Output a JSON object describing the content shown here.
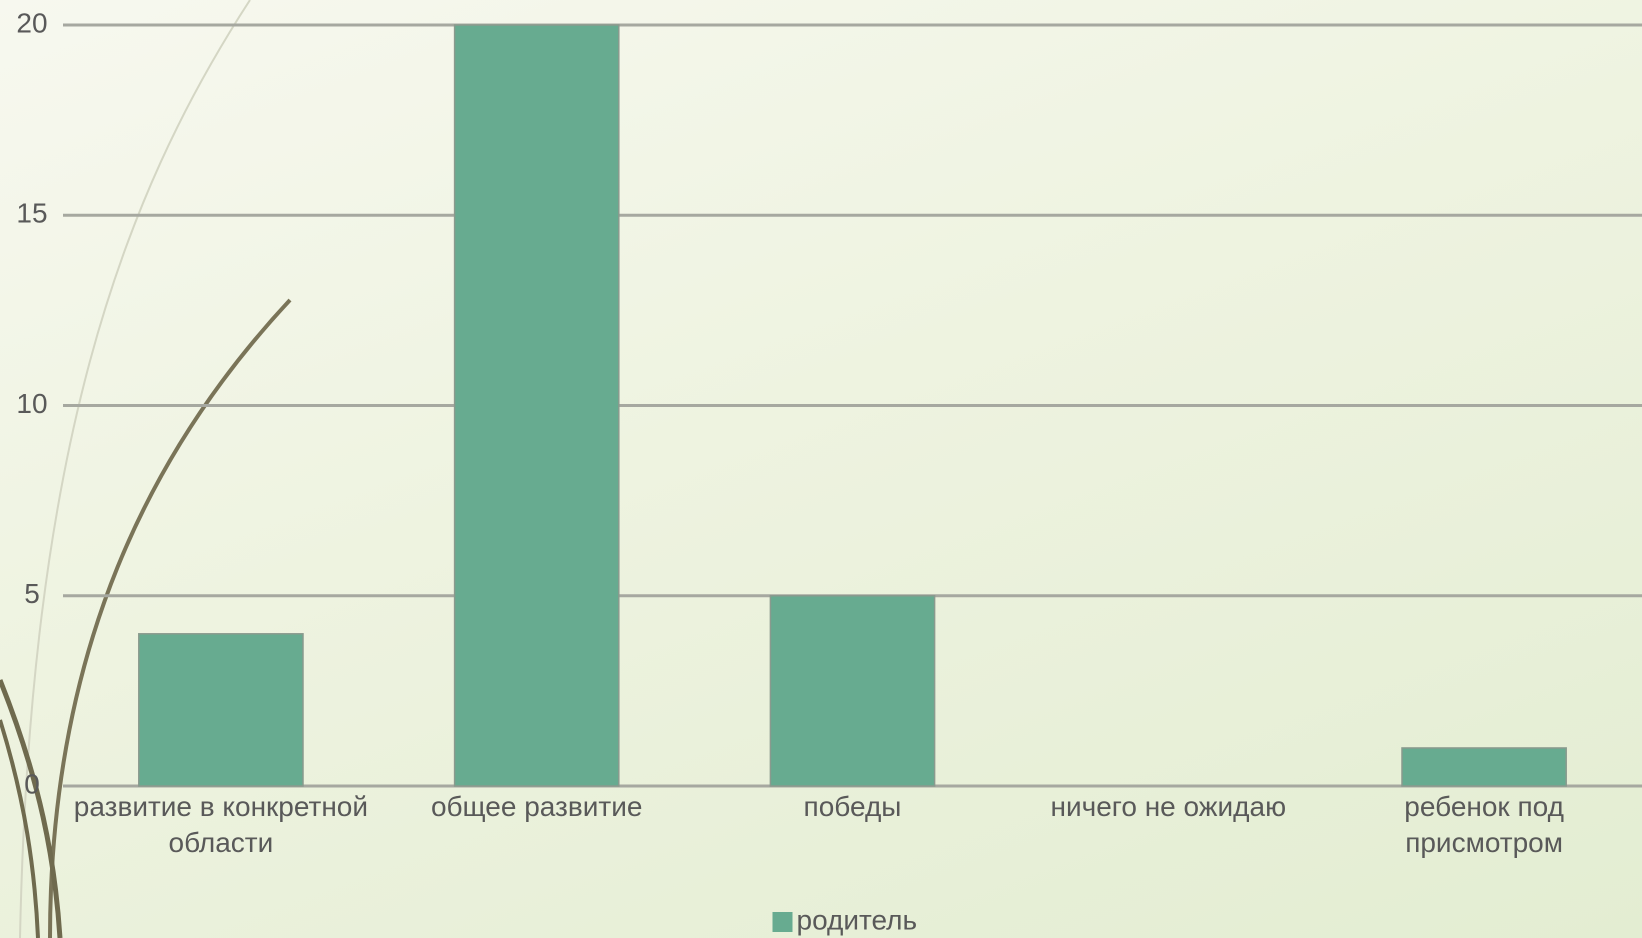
{
  "chart_data": {
    "type": "bar",
    "categories": [
      "развитие в конкретной области",
      "общее развитие",
      "победы",
      "ничего не ожидаю",
      "ребенок под присмотром"
    ],
    "series": [
      {
        "name": "родитель",
        "color": "#67ab90",
        "values": [
          4,
          20,
          5,
          0,
          1
        ]
      }
    ],
    "ylim": [
      0,
      20
    ],
    "yticks": [
      0,
      5,
      10,
      15,
      20
    ],
    "grid": true,
    "legend": "bottom"
  }
}
